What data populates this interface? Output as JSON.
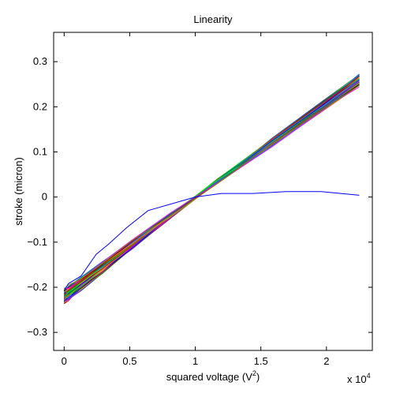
{
  "chart_data": {
    "type": "line",
    "title": "Linearity",
    "xlabel": "squared voltage (V",
    "xlabel_superscript": "2",
    "xlabel_suffix": ")",
    "ylabel": "stroke (micron)",
    "x_multiplier_label": "x 10",
    "x_multiplier_exponent": "4",
    "xlim": [
      -0.08,
      2.35
    ],
    "ylim": [
      -0.34,
      0.365
    ],
    "xticks": [
      0,
      0.5,
      1,
      1.5,
      2
    ],
    "xtick_labels": [
      "0",
      "0.5",
      "1",
      "1.5",
      "2"
    ],
    "yticks": [
      -0.3,
      -0.2,
      -0.1,
      0,
      0.1,
      0.2,
      0.3
    ],
    "ytick_labels": [
      "−0.3",
      "−0.2",
      "−0.1",
      "0",
      "0.1",
      "0.2",
      "0.3"
    ],
    "x": [
      0,
      0.0324,
      0.1296,
      0.2916,
      0.5184,
      0.81,
      1.1664,
      1.5876,
      2.0736,
      2.25
    ],
    "grid": false,
    "legend": "none",
    "bundle": {
      "count": 60,
      "x": [
        0,
        2.25
      ],
      "y_at_x0_range": [
        -0.235,
        -0.205
      ],
      "y_at_x1": 0,
      "y_at_xmax_range": [
        0.245,
        0.272
      ],
      "colors": [
        "#0000ff",
        "#008000",
        "#ff0000",
        "#00bfbf",
        "#bf00bf",
        "#bfbf00",
        "#404040",
        "#00ff00",
        "#8000ff",
        "#ff8000",
        "#0080ff",
        "#800000",
        "#008080",
        "#ff00ff",
        "#808000"
      ]
    },
    "series": [
      {
        "color": "#0000ff",
        "x": [
          0,
          0.0324,
          0.1296,
          0.2441,
          0.3364,
          0.4761,
          0.64,
          1.0,
          1.2,
          1.44,
          1.69,
          1.96,
          2.25
        ],
        "y": [
          -0.207,
          -0.192,
          -0.175,
          -0.127,
          -0.105,
          -0.068,
          -0.03,
          0,
          0.008,
          0.008,
          0.012,
          0.012,
          0.004
        ]
      }
    ]
  }
}
